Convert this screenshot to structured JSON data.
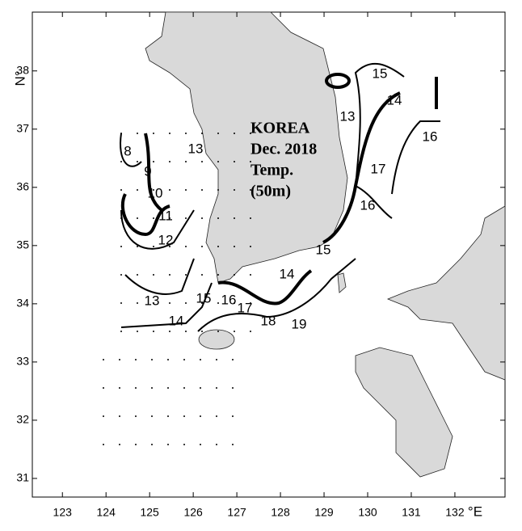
{
  "map": {
    "title_lines": [
      "KOREA",
      "Dec. 2018",
      "Temp.",
      "(50m)"
    ],
    "xlim": [
      122.31,
      133.15
    ],
    "ylim": [
      30.68,
      39.01
    ],
    "xticks": [
      123,
      124,
      125,
      126,
      127,
      128,
      129,
      130,
      131,
      132
    ],
    "yticks": [
      31,
      32,
      33,
      34,
      35,
      36,
      37,
      38
    ],
    "x_unit": "°E",
    "y_unit": "N°",
    "contour_labels": [
      8,
      9,
      10,
      11,
      12,
      13,
      13,
      14,
      15,
      16,
      17,
      18,
      19,
      14,
      15,
      16,
      17,
      16,
      14,
      13,
      15
    ]
  }
}
